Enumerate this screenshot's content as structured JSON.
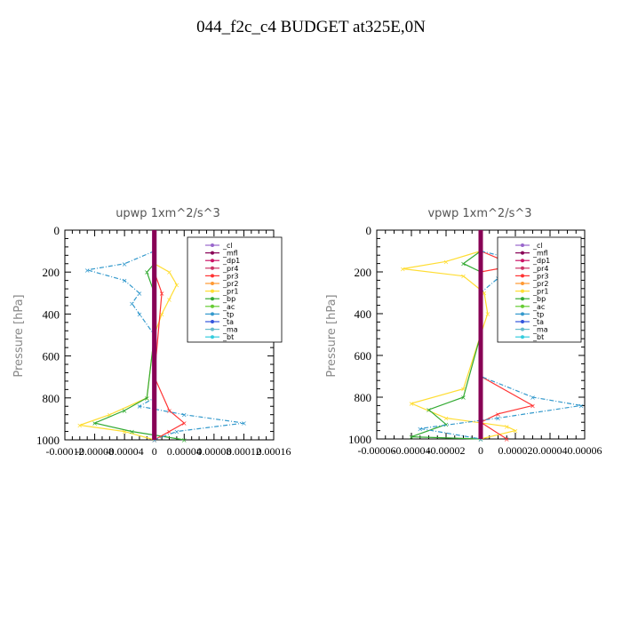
{
  "figure_title": "044_f2c_c4  BUDGET at325E,0N",
  "legend_entries": [
    {
      "name": "_cl",
      "color": "#9966cc"
    },
    {
      "name": "_mfl",
      "color": "#880055"
    },
    {
      "name": "_dp1",
      "color": "#cc1166"
    },
    {
      "name": "_pr4",
      "color": "#cc3366"
    },
    {
      "name": "_pr3",
      "color": "#ff3333"
    },
    {
      "name": "_pr2",
      "color": "#ff9933"
    },
    {
      "name": "_pr1",
      "color": "#ffdd33"
    },
    {
      "name": "_bp",
      "color": "#33aa33"
    },
    {
      "name": "_ac",
      "color": "#66cc33"
    },
    {
      "name": "_tp",
      "color": "#3399cc"
    },
    {
      "name": "_ta",
      "color": "#3355dd"
    },
    {
      "name": "_ma",
      "color": "#66bbcc"
    },
    {
      "name": "_bt",
      "color": "#33ccdd"
    }
  ],
  "chart_data": [
    {
      "type": "line",
      "title": "upwp   1xm^2/s^3",
      "ylabel": "Pressure  [hPa]",
      "xlabel": "",
      "ylim": [
        1000,
        0
      ],
      "xlim": [
        -0.00012,
        0.00016
      ],
      "xtick_labels": [
        "-0.00012",
        "-0.00008",
        "-0.00004",
        "0",
        "0.00004",
        "0.00008",
        "0.00012",
        "0.00016"
      ],
      "ytick_labels": [
        "0",
        "200",
        "400",
        "600",
        "800",
        "1000"
      ],
      "series": [
        {
          "name": "_pr1",
          "x": [
            0,
            0,
            2e-05,
            3e-05,
            2e-05,
            1e-05,
            0,
            -1e-05,
            -6e-05,
            -0.0001,
            -4e-05,
            0
          ],
          "y": [
            100,
            160,
            200,
            260,
            330,
            400,
            500,
            800,
            880,
            930,
            960,
            1000
          ]
        },
        {
          "name": "_bp",
          "x": [
            0,
            0,
            -1e-05,
            0,
            0,
            -1e-05,
            -4e-05,
            -8e-05,
            -3e-05,
            4e-05
          ],
          "y": [
            100,
            160,
            200,
            300,
            500,
            800,
            860,
            920,
            960,
            1000
          ]
        },
        {
          "name": "_pr3",
          "x": [
            0,
            0,
            1e-05,
            0,
            2e-05,
            4e-05,
            2e-05,
            0
          ],
          "y": [
            100,
            200,
            300,
            700,
            860,
            920,
            960,
            1000
          ]
        },
        {
          "name": "_tp",
          "x": [
            0,
            -4e-05,
            -9e-05,
            -4e-05,
            -2e-05,
            -3e-05,
            -2e-05,
            0,
            0,
            -2e-05,
            4e-05,
            0.00012,
            3e-05,
            0
          ],
          "y": [
            100,
            160,
            190,
            240,
            300,
            350,
            400,
            500,
            800,
            840,
            880,
            920,
            960,
            1000
          ]
        },
        {
          "name": "_cl",
          "x": [
            0,
            0,
            0,
            0,
            0,
            0
          ],
          "y": [
            0,
            200,
            400,
            600,
            800,
            1000
          ]
        },
        {
          "name": "_mfl",
          "x": [
            0,
            0,
            0,
            0,
            0,
            0
          ],
          "y": [
            0,
            200,
            400,
            600,
            800,
            1000
          ]
        }
      ]
    },
    {
      "type": "line",
      "title": "vpwp   1xm^2/s^3",
      "ylabel": "Pressure  [hPa]",
      "xlabel": "",
      "ylim": [
        1000,
        0
      ],
      "xlim": [
        -6e-05,
        6e-05
      ],
      "xtick_labels": [
        "-0.00006",
        "-0.00004",
        "-0.00002",
        "0",
        "0.00002",
        "0.00004",
        "0.00006"
      ],
      "ytick_labels": [
        "0",
        "200",
        "400",
        "600",
        "800",
        "1000"
      ],
      "series": [
        {
          "name": "_pr1",
          "x": [
            0,
            -2e-05,
            -4.5e-05,
            -1e-05,
            2e-06,
            4e-06,
            0,
            -1e-05,
            -4e-05,
            -2e-05,
            1.5e-05,
            2e-05,
            0
          ],
          "y": [
            100,
            150,
            185,
            220,
            300,
            400,
            500,
            760,
            830,
            900,
            940,
            960,
            1000
          ]
        },
        {
          "name": "_bp",
          "x": [
            0,
            -1e-05,
            0,
            0,
            -1e-05,
            -3e-05,
            -2e-05,
            -4e-05,
            0
          ],
          "y": [
            100,
            160,
            200,
            500,
            800,
            860,
            930,
            990,
            1000
          ]
        },
        {
          "name": "_pr3",
          "x": [
            0,
            2e-05,
            0,
            0,
            3e-05,
            1e-05,
            0,
            1.5e-05
          ],
          "y": [
            100,
            170,
            200,
            700,
            840,
            880,
            920,
            1000
          ]
        },
        {
          "name": "_tp",
          "x": [
            0,
            3e-05,
            5e-05,
            1e-05,
            0,
            0,
            3e-05,
            5.8e-05,
            1e-05,
            -3.5e-05,
            0
          ],
          "y": [
            100,
            160,
            190,
            230,
            300,
            700,
            800,
            840,
            900,
            950,
            1000
          ]
        },
        {
          "name": "_cl",
          "x": [
            0,
            0,
            0,
            0,
            0,
            0
          ],
          "y": [
            0,
            200,
            400,
            600,
            800,
            1000
          ]
        },
        {
          "name": "_mfl",
          "x": [
            0,
            0,
            0,
            0,
            0,
            0
          ],
          "y": [
            0,
            200,
            400,
            600,
            800,
            1000
          ]
        }
      ]
    }
  ]
}
